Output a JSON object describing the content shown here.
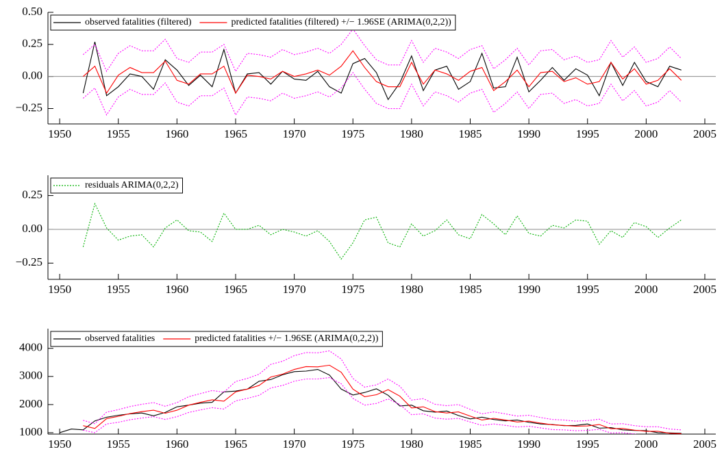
{
  "chart_data": [
    {
      "type": "line",
      "x": [
        1952,
        1953,
        1954,
        1955,
        1956,
        1957,
        1958,
        1959,
        1960,
        1961,
        1962,
        1963,
        1964,
        1965,
        1966,
        1967,
        1968,
        1969,
        1970,
        1971,
        1972,
        1973,
        1974,
        1975,
        1976,
        1977,
        1978,
        1979,
        1980,
        1981,
        1982,
        1983,
        1984,
        1985,
        1986,
        1987,
        1988,
        1989,
        1990,
        1991,
        1992,
        1993,
        1994,
        1995,
        1996,
        1997,
        1998,
        1999,
        2000,
        2001,
        2002,
        2003
      ],
      "series": [
        {
          "name": "observed fatalities (filtered)",
          "color": "#000000",
          "style": "solid",
          "values": [
            -0.13,
            0.27,
            -0.15,
            -0.08,
            0.02,
            0.0,
            -0.1,
            0.13,
            0.05,
            -0.07,
            0.01,
            -0.08,
            0.21,
            -0.13,
            0.02,
            0.03,
            -0.06,
            0.04,
            -0.02,
            -0.03,
            0.04,
            -0.08,
            -0.13,
            0.1,
            0.14,
            0.03,
            -0.18,
            -0.05,
            0.16,
            -0.11,
            0.05,
            0.08,
            -0.1,
            -0.04,
            0.18,
            -0.09,
            -0.08,
            0.15,
            -0.12,
            -0.03,
            0.07,
            -0.03,
            0.06,
            0.01,
            -0.15,
            0.11,
            -0.07,
            0.11,
            -0.04,
            -0.08,
            0.08,
            0.05
          ]
        },
        {
          "name": "predicted fatalities (filtered) +/− 1.96SE (ARIMA(0,2,2))",
          "color": "#ff0000",
          "style": "solid",
          "values": [
            0.0,
            0.08,
            -0.13,
            0.01,
            0.07,
            0.03,
            0.03,
            0.12,
            -0.03,
            -0.06,
            0.02,
            0.02,
            0.08,
            -0.13,
            0.01,
            0.0,
            -0.02,
            0.04,
            0.0,
            0.02,
            0.05,
            0.01,
            0.08,
            0.2,
            0.07,
            -0.04,
            -0.08,
            -0.08,
            0.11,
            -0.06,
            0.05,
            0.02,
            -0.03,
            0.04,
            0.07,
            -0.11,
            -0.04,
            0.05,
            -0.08,
            0.03,
            0.04,
            -0.04,
            -0.01,
            -0.06,
            -0.04,
            0.11,
            -0.02,
            0.06,
            -0.06,
            -0.03,
            0.06,
            -0.03
          ]
        },
        {
          "color": "#ff00ff",
          "style": "dotted",
          "values": [
            0.17,
            0.25,
            0.04,
            0.18,
            0.24,
            0.2,
            0.2,
            0.29,
            0.14,
            0.11,
            0.19,
            0.19,
            0.25,
            0.04,
            0.18,
            0.17,
            0.15,
            0.21,
            0.17,
            0.19,
            0.22,
            0.18,
            0.25,
            0.37,
            0.24,
            0.13,
            0.09,
            0.09,
            0.28,
            0.11,
            0.22,
            0.19,
            0.14,
            0.21,
            0.24,
            0.06,
            0.13,
            0.22,
            0.09,
            0.2,
            0.21,
            0.13,
            0.16,
            0.11,
            0.13,
            0.28,
            0.15,
            0.23,
            0.11,
            0.14,
            0.23,
            0.14
          ]
        },
        {
          "color": "#ff00ff",
          "style": "dotted",
          "values": [
            -0.17,
            -0.09,
            -0.3,
            -0.16,
            -0.1,
            -0.14,
            -0.14,
            -0.05,
            -0.2,
            -0.23,
            -0.15,
            -0.15,
            -0.09,
            -0.3,
            -0.16,
            -0.17,
            -0.19,
            -0.13,
            -0.17,
            -0.15,
            -0.12,
            -0.16,
            -0.09,
            0.03,
            -0.1,
            -0.21,
            -0.25,
            -0.25,
            -0.06,
            -0.23,
            -0.12,
            -0.15,
            -0.2,
            -0.13,
            -0.1,
            -0.28,
            -0.21,
            -0.12,
            -0.25,
            -0.14,
            -0.13,
            -0.21,
            -0.18,
            -0.23,
            -0.21,
            -0.06,
            -0.19,
            -0.11,
            -0.23,
            -0.2,
            -0.11,
            -0.2
          ]
        }
      ],
      "xlim": [
        1949,
        2005
      ],
      "xticks": [
        1950,
        1955,
        1960,
        1965,
        1970,
        1975,
        1980,
        1985,
        1990,
        1995,
        2000,
        2005
      ],
      "ylim": [
        -0.37,
        0.5
      ],
      "yticks": [
        {
          "value": -0.25,
          "label": "−0.25"
        },
        {
          "value": 0,
          "label": "0.00"
        },
        {
          "value": 0.25,
          "label": "0.25"
        },
        {
          "value": 0.5,
          "label": "0.50"
        }
      ],
      "zero_line": true
    },
    {
      "type": "line",
      "x": [
        1952,
        1953,
        1954,
        1955,
        1956,
        1957,
        1958,
        1959,
        1960,
        1961,
        1962,
        1963,
        1964,
        1965,
        1966,
        1967,
        1968,
        1969,
        1970,
        1971,
        1972,
        1973,
        1974,
        1975,
        1976,
        1977,
        1978,
        1979,
        1980,
        1981,
        1982,
        1983,
        1984,
        1985,
        1986,
        1987,
        1988,
        1989,
        1990,
        1991,
        1992,
        1993,
        1994,
        1995,
        1996,
        1997,
        1998,
        1999,
        2000,
        2001,
        2002,
        2003
      ],
      "series": [
        {
          "name": "residuals ARIMA(0,2,2)",
          "color": "#00b000",
          "style": "dotted",
          "values": [
            -0.13,
            0.19,
            0.01,
            -0.08,
            -0.05,
            -0.04,
            -0.13,
            0.01,
            0.07,
            -0.01,
            -0.02,
            -0.09,
            0.12,
            0.0,
            0.0,
            0.03,
            -0.04,
            0.0,
            -0.02,
            -0.05,
            -0.01,
            -0.09,
            -0.22,
            -0.1,
            0.07,
            0.09,
            -0.1,
            -0.13,
            0.04,
            -0.05,
            -0.01,
            0.07,
            -0.04,
            -0.07,
            0.11,
            0.04,
            -0.04,
            0.1,
            -0.03,
            -0.05,
            0.03,
            0.01,
            0.07,
            0.06,
            -0.11,
            -0.01,
            -0.06,
            0.05,
            0.02,
            -0.06,
            0.01,
            0.07
          ]
        }
      ],
      "xlim": [
        1949,
        2005
      ],
      "xticks": [
        1950,
        1955,
        1960,
        1965,
        1970,
        1975,
        1980,
        1985,
        1990,
        1995,
        2000,
        2005
      ],
      "ylim": [
        -0.37,
        0.4
      ],
      "yticks": [
        {
          "value": -0.25,
          "label": "−0.25"
        },
        {
          "value": 0,
          "label": "0.00"
        },
        {
          "value": 0.25,
          "label": "0.25"
        }
      ],
      "zero_line": true
    },
    {
      "type": "line",
      "x": [
        1950,
        1951,
        1952,
        1953,
        1954,
        1955,
        1956,
        1957,
        1958,
        1959,
        1960,
        1961,
        1962,
        1963,
        1964,
        1965,
        1966,
        1967,
        1968,
        1969,
        1970,
        1971,
        1972,
        1973,
        1974,
        1975,
        1976,
        1977,
        1978,
        1979,
        1980,
        1981,
        1982,
        1983,
        1984,
        1985,
        1986,
        1987,
        1988,
        1989,
        1990,
        1991,
        1992,
        1993,
        1994,
        1995,
        1996,
        1997,
        1998,
        1999,
        2000,
        2001,
        2002,
        2003
      ],
      "series": [
        {
          "name": "observed fatalities",
          "color": "#000000",
          "style": "solid",
          "values": [
            1000,
            1130,
            1100,
            1420,
            1550,
            1620,
            1670,
            1700,
            1600,
            1720,
            1920,
            1980,
            2050,
            2080,
            2450,
            2480,
            2550,
            2830,
            2890,
            3060,
            3170,
            3190,
            3250,
            3050,
            2550,
            2340,
            2430,
            2560,
            2330,
            1950,
            1980,
            1780,
            1730,
            1770,
            1610,
            1490,
            1550,
            1470,
            1420,
            1450,
            1370,
            1310,
            1290,
            1250,
            1260,
            1310,
            1160,
            1180,
            1100,
            1080,
            1070,
            1000,
            990,
            980
          ]
        },
        {
          "name": "predicted fatalities +/− 1.96SE (ARIMA(0,2,2))",
          "color": "#ff0000",
          "style": "solid",
          "values": [
            null,
            null,
            1250,
            1150,
            1500,
            1580,
            1680,
            1750,
            1800,
            1690,
            1800,
            1980,
            2080,
            2170,
            2120,
            2450,
            2550,
            2680,
            2980,
            3080,
            3250,
            3350,
            3340,
            3400,
            3150,
            2550,
            2280,
            2350,
            2530,
            2300,
            1880,
            1920,
            1750,
            1700,
            1740,
            1590,
            1450,
            1510,
            1450,
            1380,
            1410,
            1340,
            1280,
            1260,
            1230,
            1240,
            1290,
            1140,
            1150,
            1090,
            1050,
            1050,
            980,
            960
          ]
        },
        {
          "color": "#ff00ff",
          "style": "dotted",
          "values": [
            null,
            null,
            1440,
            1320,
            1730,
            1820,
            1930,
            2010,
            2070,
            1940,
            2070,
            2280,
            2390,
            2500,
            2440,
            2820,
            2930,
            3080,
            3430,
            3540,
            3740,
            3850,
            3840,
            3910,
            3620,
            2930,
            2620,
            2700,
            2910,
            2650,
            2160,
            2210,
            2010,
            1960,
            2000,
            1830,
            1670,
            1740,
            1670,
            1590,
            1620,
            1540,
            1470,
            1450,
            1410,
            1430,
            1480,
            1310,
            1320,
            1250,
            1210,
            1210,
            1130,
            1100
          ]
        },
        {
          "color": "#ff00ff",
          "style": "dotted",
          "values": [
            null,
            null,
            1090,
            1000,
            1310,
            1370,
            1460,
            1520,
            1570,
            1470,
            1570,
            1720,
            1810,
            1890,
            1840,
            2130,
            2220,
            2330,
            2590,
            2680,
            2830,
            2910,
            2910,
            2960,
            2740,
            2220,
            1980,
            2040,
            2200,
            2000,
            1640,
            1670,
            1520,
            1480,
            1510,
            1380,
            1260,
            1310,
            1260,
            1200,
            1230,
            1170,
            1110,
            1100,
            1070,
            1080,
            1120,
            990,
            1000,
            950,
            910,
            910,
            850,
            840
          ]
        }
      ],
      "xlim": [
        1949,
        2005
      ],
      "xticks": [
        1950,
        1955,
        1960,
        1965,
        1970,
        1975,
        1980,
        1985,
        1990,
        1995,
        2000,
        2005
      ],
      "ylim": [
        950,
        4700
      ],
      "yticks": [
        1000,
        2000,
        3000,
        4000
      ],
      "zero_line": false
    }
  ]
}
